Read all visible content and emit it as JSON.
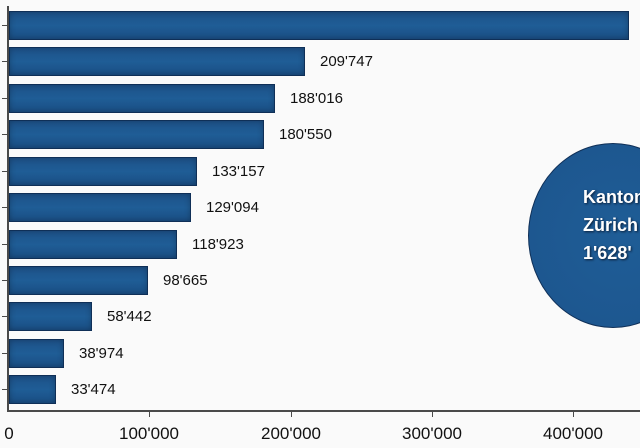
{
  "chart_data": {
    "type": "bar",
    "orientation": "horizontal",
    "title": "",
    "xlabel": "",
    "ylabel": "",
    "xlim": [
      0,
      450000
    ],
    "x_ticks": [
      "0",
      "100'000",
      "200'000",
      "300'000",
      "400'000"
    ],
    "categories": [
      "",
      "",
      "",
      "",
      "",
      "",
      "",
      "",
      "",
      "",
      ""
    ],
    "values": [
      440000,
      209747,
      188016,
      180550,
      133157,
      129094,
      118923,
      98665,
      58442,
      38974,
      33474
    ],
    "value_labels": [
      "",
      "209'747",
      "188'016",
      "180'550",
      "133'157",
      "129'094",
      "118'923",
      "98'665",
      "58'442",
      "38'974",
      "33'474"
    ],
    "bar_color": "#1d5790",
    "grid": false,
    "annotation": {
      "type": "bubble",
      "lines": [
        "Kanton",
        "Zürich",
        "1'628'"
      ],
      "color": "#1d5790"
    }
  },
  "axis": {
    "ticks": [
      {
        "label": "0",
        "value": 0
      },
      {
        "label": "100'000",
        "value": 100000
      },
      {
        "label": "200'000",
        "value": 200000
      },
      {
        "label": "300'000",
        "value": 300000
      },
      {
        "label": "400'000",
        "value": 400000
      }
    ]
  },
  "bars": [
    {
      "label": "",
      "value": 440000
    },
    {
      "label": "209'747",
      "value": 209747
    },
    {
      "label": "188'016",
      "value": 188016
    },
    {
      "label": "180'550",
      "value": 180550
    },
    {
      "label": "133'157",
      "value": 133157
    },
    {
      "label": "129'094",
      "value": 129094
    },
    {
      "label": "118'923",
      "value": 118923
    },
    {
      "label": "98'665",
      "value": 98665
    },
    {
      "label": "58'442",
      "value": 58442
    },
    {
      "label": "38'974",
      "value": 38974
    },
    {
      "label": "33'474",
      "value": 33474
    }
  ],
  "bubble": {
    "line1": "Kanton",
    "line2": "Zürich",
    "line3": "1'628'"
  }
}
